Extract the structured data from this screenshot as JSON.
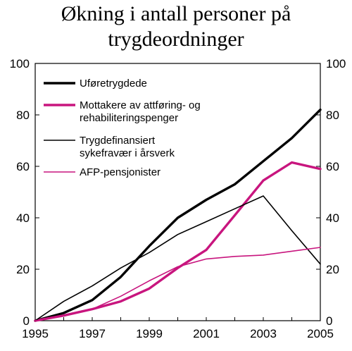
{
  "chart_data": {
    "type": "line",
    "title_lines": [
      "Økning i antall personer på",
      "trygdeordninger"
    ],
    "xlabel": "",
    "ylabel": "",
    "x": [
      1995,
      1996,
      1997,
      1998,
      1999,
      2000,
      2001,
      2002,
      2003,
      2004,
      2005
    ],
    "x_ticks": [
      "1995",
      "1997",
      "1999",
      "2001",
      "2003",
      "2005"
    ],
    "y_ticks": [
      "0",
      "20",
      "40",
      "60",
      "80",
      "100"
    ],
    "ylim": [
      0,
      100
    ],
    "xlim": [
      1995,
      2005
    ],
    "grid": false,
    "legend_position": "top-left",
    "series": [
      {
        "name": "Uføretrygdede",
        "label_lines": [
          "Uføretrygdede"
        ],
        "color": "#000000",
        "weight": "thick",
        "values": [
          0,
          3,
          8,
          17,
          29,
          40,
          47,
          53,
          62,
          71,
          82
        ]
      },
      {
        "name": "Mottakere av attføring- og rehabiliteringspenger",
        "label_lines": [
          "Mottakere av attføring- og",
          "rehabiliteringspenger"
        ],
        "color": "#c8157e",
        "weight": "thick",
        "values": [
          0,
          2,
          4.5,
          7.5,
          12.5,
          20.5,
          27.5,
          41,
          54.5,
          61.5,
          59
        ]
      },
      {
        "name": "Trygdefinansiert sykefravær i årsverk",
        "label_lines": [
          "Trygdefinansiert",
          "sykefravær i årsverk"
        ],
        "color": "#000000",
        "weight": "thin",
        "values": [
          0,
          7.5,
          13.5,
          20.5,
          26.5,
          33.5,
          38.5,
          43.5,
          48.5,
          35,
          22
        ]
      },
      {
        "name": "AFP-pensjonister",
        "label_lines": [
          "AFP-pensjonister"
        ],
        "color": "#c8157e",
        "weight": "thin",
        "values": [
          0,
          2,
          4.5,
          9.5,
          15.5,
          21,
          24,
          25,
          25.5,
          27,
          28.5
        ]
      }
    ]
  }
}
